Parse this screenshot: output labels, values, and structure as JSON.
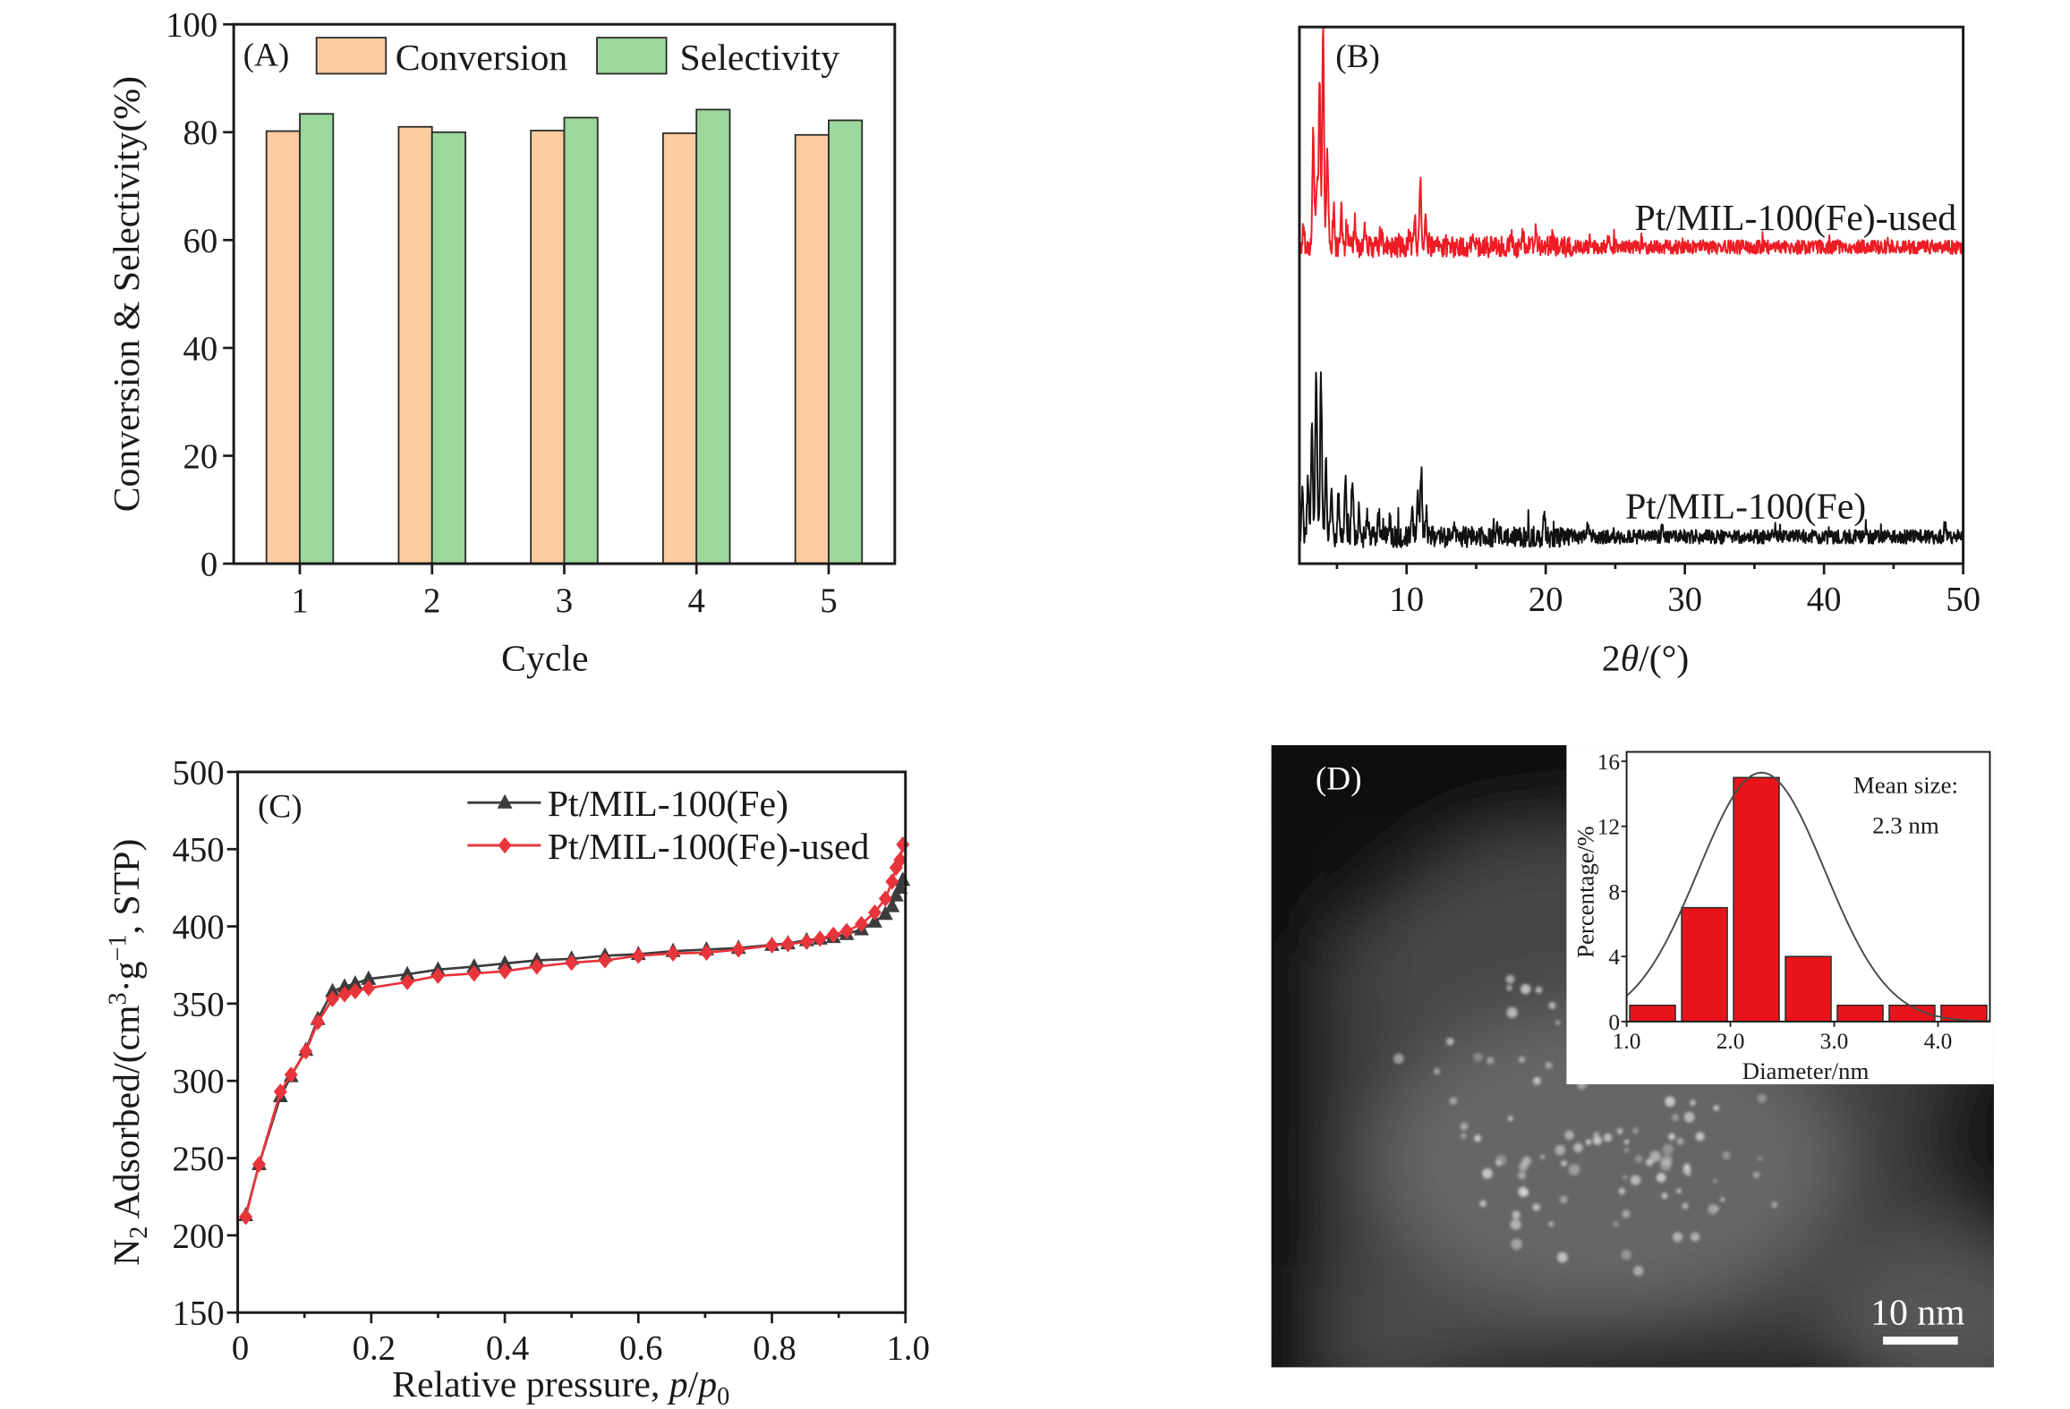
{
  "colors": {
    "conversion": "#FCCB9F",
    "selectivity": "#9CD79B",
    "xrd_used": "#EE1C24",
    "xrd_fresh": "#111111",
    "iso_fresh": "#3c3c3c",
    "iso_used": "#E8353B",
    "hist": "#E8141A",
    "fit": "#4a4a4a"
  },
  "chart_data": [
    {
      "panel": "(A)",
      "type": "bar",
      "categories": [
        "1",
        "2",
        "3",
        "4",
        "5"
      ],
      "series": [
        {
          "name": "Conversion",
          "values": [
            80.2,
            81.0,
            80.3,
            79.8,
            79.5
          ]
        },
        {
          "name": "Selectivity",
          "values": [
            83.4,
            80.0,
            82.7,
            84.2,
            82.2
          ]
        }
      ],
      "xlabel": "Cycle",
      "ylabel": "Conversion & Selectivity(%)",
      "ylim": [
        0,
        100
      ],
      "yticks": [
        "0",
        "20",
        "40",
        "60",
        "80",
        "100"
      ],
      "legend": "top"
    },
    {
      "panel": "(B)",
      "type": "line",
      "xlabel_parts": [
        "2",
        "θ",
        "/(°)"
      ],
      "xlim": [
        2.3,
        50
      ],
      "xticks": [
        "10",
        "20",
        "30",
        "40",
        "50"
      ],
      "ylim": [
        0,
        100
      ],
      "series": [
        {
          "name": "Pt/MIL-100(Fe)-used",
          "baseline": 59,
          "noise": 1.3,
          "peaks": [
            [
              2.6,
              4
            ],
            [
              3.3,
              22
            ],
            [
              3.55,
              12
            ],
            [
              3.75,
              31
            ],
            [
              4.0,
              40
            ],
            [
              4.3,
              19
            ],
            [
              4.75,
              6
            ],
            [
              5.3,
              7
            ],
            [
              5.7,
              4
            ],
            [
              6.3,
              5
            ],
            [
              7.0,
              3
            ],
            [
              8.2,
              2
            ],
            [
              10.2,
              3
            ],
            [
              10.6,
              5
            ],
            [
              11.0,
              13
            ],
            [
              11.35,
              5
            ],
            [
              14.8,
              2
            ],
            [
              17.5,
              2
            ],
            [
              18.4,
              3
            ],
            [
              19.3,
              3
            ],
            [
              20.5,
              2
            ],
            [
              24.5,
              2
            ]
          ]
        },
        {
          "name": "Pt/MIL-100(Fe)",
          "baseline": 5,
          "noise": 1.3,
          "peaks": [
            [
              2.5,
              8
            ],
            [
              2.9,
              10
            ],
            [
              3.2,
              20
            ],
            [
              3.5,
              31
            ],
            [
              3.85,
              30
            ],
            [
              4.2,
              15
            ],
            [
              4.6,
              10
            ],
            [
              5.1,
              8
            ],
            [
              5.6,
              12
            ],
            [
              6.1,
              11
            ],
            [
              6.6,
              5
            ],
            [
              7.2,
              4
            ],
            [
              8.0,
              4
            ],
            [
              8.8,
              3
            ],
            [
              10.4,
              5
            ],
            [
              10.8,
              9
            ],
            [
              11.05,
              13
            ],
            [
              11.4,
              5
            ],
            [
              13.4,
              2
            ],
            [
              16.5,
              2
            ],
            [
              19.9,
              5
            ],
            [
              23.0,
              2
            ],
            [
              28.4,
              2.5
            ],
            [
              36.5,
              2
            ],
            [
              43.0,
              2
            ],
            [
              48.7,
              2.5
            ]
          ]
        }
      ]
    },
    {
      "panel": "(C)",
      "type": "line",
      "xlim": [
        0,
        1.0
      ],
      "ylim": [
        150,
        500
      ],
      "xticks": [
        "0",
        "0.2",
        "0.4",
        "0.6",
        "0.8",
        "1.0"
      ],
      "yticks": [
        "150",
        "200",
        "250",
        "300",
        "350",
        "400",
        "450",
        "500"
      ],
      "xlabel_parts": [
        "Relative pressure, ",
        "p",
        "/",
        "p",
        "0"
      ],
      "ylabel_parts": [
        "N",
        "2",
        " Adsorbed/(cm",
        "3",
        "·g",
        "−1",
        ", STP)"
      ],
      "x": [
        0.012,
        0.032,
        0.064,
        0.08,
        0.102,
        0.12,
        0.142,
        0.16,
        0.176,
        0.196,
        0.254,
        0.3,
        0.354,
        0.4,
        0.448,
        0.5,
        0.55,
        0.6,
        0.652,
        0.702,
        0.75,
        0.8,
        0.824,
        0.852,
        0.872,
        0.892,
        0.912,
        0.934,
        0.954,
        0.97,
        0.98,
        0.986,
        0.992,
        0.996
      ],
      "series": [
        {
          "name": "Pt/MIL-100(Fe)",
          "marker": "triangle",
          "values": [
            213,
            246,
            290,
            303,
            320,
            340,
            358,
            361,
            363,
            366,
            369,
            372,
            374,
            376,
            378,
            379,
            381,
            382,
            384,
            385,
            386,
            388,
            389,
            391,
            392,
            393,
            395,
            398,
            403,
            408,
            413,
            420,
            425,
            430
          ]
        },
        {
          "name": "Pt/MIL-100(Fe)-used",
          "marker": "diamond",
          "values": [
            212,
            246,
            293,
            304,
            319,
            338,
            353,
            356,
            358,
            360,
            364,
            368,
            369.5,
            371,
            374,
            376.5,
            378,
            381,
            382.5,
            383,
            385,
            387.7,
            388.5,
            390,
            392,
            394.6,
            397,
            401.5,
            409,
            418,
            429,
            438,
            443,
            453
          ]
        }
      ],
      "legend": "top-right"
    },
    {
      "panel": "(D)",
      "type": "bar",
      "subtype": "histogram",
      "bin_edges": [
        1.0,
        1.5,
        2.0,
        2.5,
        3.0,
        3.5,
        4.0,
        4.5
      ],
      "values": [
        1,
        7,
        15,
        4,
        1,
        1,
        1
      ],
      "fit": {
        "type": "gaussian",
        "mean": 2.3,
        "sigma": 0.61,
        "amplitude": 15.3
      },
      "xlim": [
        1.0,
        4.5
      ],
      "ylim": [
        0,
        16
      ],
      "xticks": [
        "1.0",
        "2.0",
        "3.0",
        "4.0"
      ],
      "yticks": [
        "0",
        "4",
        "8",
        "12",
        "16"
      ],
      "xlabel": "Diameter/nm",
      "ylabel": "Percentage/%",
      "annotation_title": "Mean size:",
      "annotation_value": "2.3 nm",
      "scale_bar": "10 nm"
    }
  ]
}
